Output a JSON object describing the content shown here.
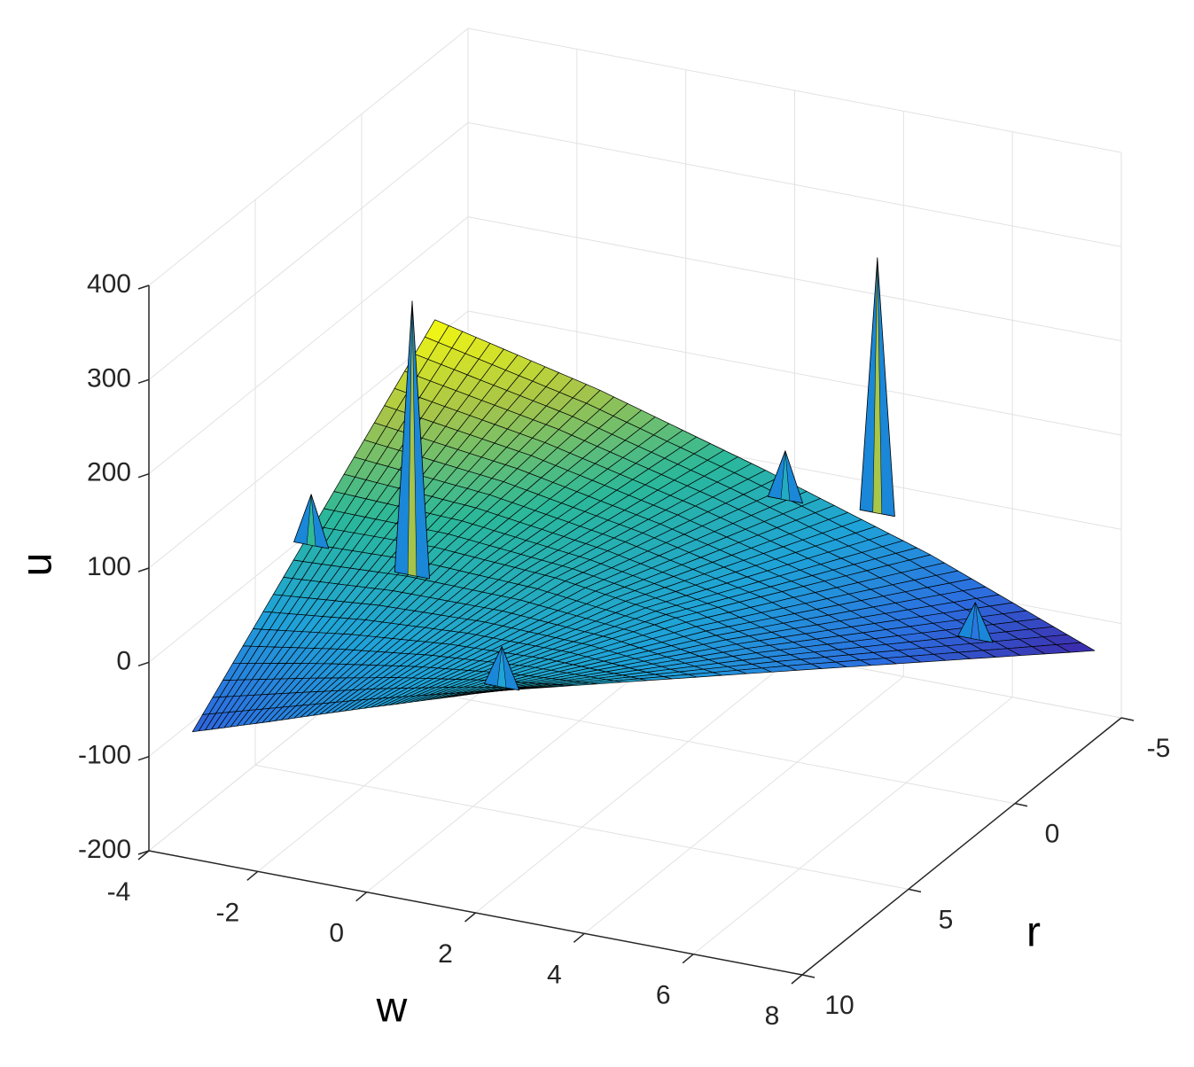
{
  "chart_data": {
    "type": "surface",
    "xlabel": "w",
    "ylabel": "r",
    "zlabel": "u",
    "xlim": [
      -4,
      8
    ],
    "xticks": [
      -4,
      -2,
      0,
      2,
      4,
      6,
      8
    ],
    "ylim": [
      -5,
      10
    ],
    "yticks": [
      -5,
      0,
      5,
      10
    ],
    "zlim": [
      -200,
      400
    ],
    "zticks": [
      -200,
      -100,
      0,
      100,
      200,
      300,
      400
    ],
    "grid": true,
    "colormap": [
      "#3e26a8",
      "#2c6fe0",
      "#1fa3d8",
      "#2bb89a",
      "#a5c44a",
      "#f9fb0e"
    ],
    "edge_color": "#000000",
    "surface": {
      "w": [
        [
          -3.2,
          -1.8,
          -0.4,
          1.0,
          2.4
        ],
        [
          -3.2,
          -1.1,
          1.0,
          3.1,
          5.2
        ],
        [
          -3.2,
          -0.4,
          2.4,
          5.2,
          8
        ]
      ],
      "r": [
        [
          10,
          10,
          10,
          10,
          10
        ],
        [
          4.3,
          4,
          3.7,
          3.4,
          3.1
        ],
        [
          -1.4,
          -2,
          -2.6,
          -3.2,
          -3.75
        ]
      ],
      "z": [
        [
          -65,
          -39,
          -12,
          14,
          40
        ],
        [
          50,
          45,
          30,
          5,
          -33
        ],
        [
          165,
          110,
          45,
          -25,
          -106
        ]
      ]
    },
    "spikes": {
      "color": "#1a87d8",
      "w": [
        -1.9,
        4.3,
        -1.8,
        3,
        1.7,
        6.1
      ],
      "r": [
        3,
        -3,
        8,
        -2,
        8,
        -3
      ],
      "z": [
        279,
        284,
        166,
        83,
        43,
        -62
      ],
      "base": [
        -12,
        13,
        112,
        31,
        0,
        -101
      ]
    }
  }
}
